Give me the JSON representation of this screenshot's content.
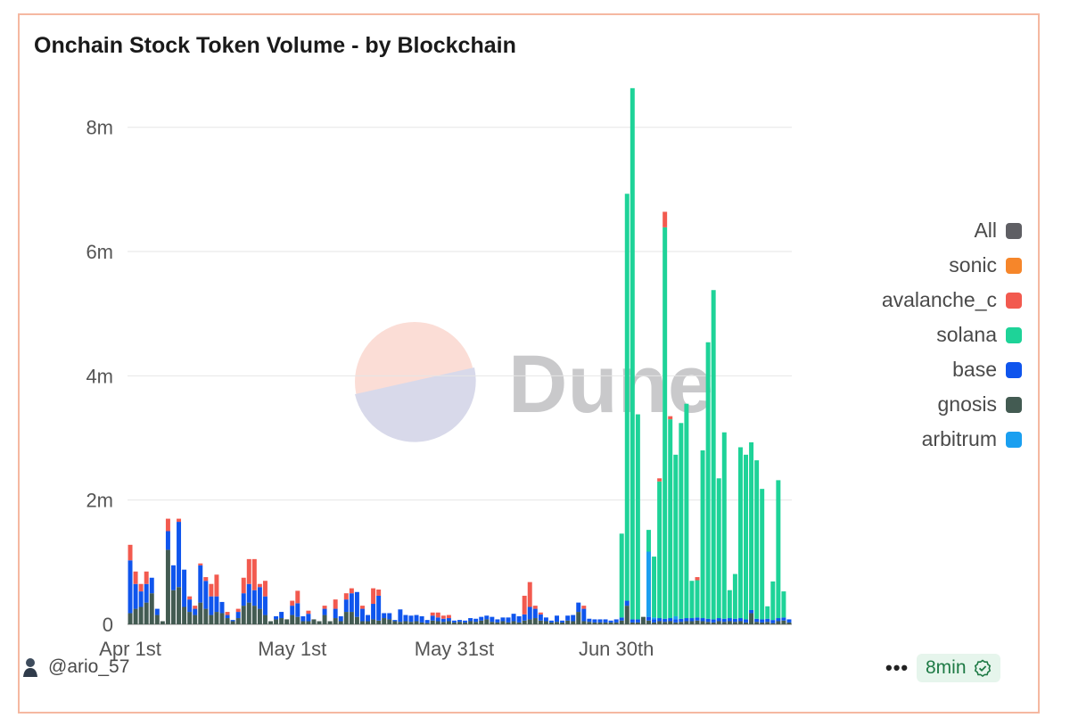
{
  "title": "Onchain Stock Token Volume - by Blockchain",
  "watermark": "Dune",
  "footer": {
    "user": "@ario_57",
    "menu": "•••",
    "freshness": "8min"
  },
  "legend": [
    {
      "name": "All",
      "color": "#5f5f64"
    },
    {
      "name": "sonic",
      "color": "#f6862a"
    },
    {
      "name": "avalanche_c",
      "color": "#f25a4f"
    },
    {
      "name": "solana",
      "color": "#1ed398"
    },
    {
      "name": "base",
      "color": "#0f55ed"
    },
    {
      "name": "gnosis",
      "color": "#435b52"
    },
    {
      "name": "arbitrum",
      "color": "#1a9ff0"
    }
  ],
  "chart_data": {
    "type": "bar",
    "stacked": true,
    "title": "Onchain Stock Token Volume - by Blockchain",
    "xlabel": "",
    "ylabel": "",
    "ylim": [
      0,
      8800000
    ],
    "yticks": [
      0,
      2000000,
      4000000,
      6000000,
      8000000
    ],
    "ytick_labels": [
      "0",
      "2m",
      "4m",
      "6m",
      "8m"
    ],
    "xtick_labels": [
      {
        "label": "Apr 1st",
        "day": 0
      },
      {
        "label": "May 1st",
        "day": 30
      },
      {
        "label": "May 31st",
        "day": 60
      },
      {
        "label": "Jun 30th",
        "day": 90
      }
    ],
    "x_start": "Apr 1st",
    "grid": true,
    "legend_position": "right",
    "series": [
      {
        "name": "gnosis",
        "color": "#435b52",
        "values": [
          0.18,
          0.25,
          0.28,
          0.35,
          0.5,
          0.15,
          0.05,
          1.2,
          0.55,
          0.6,
          0.28,
          0.2,
          0.15,
          0.35,
          0.25,
          0.15,
          0.2,
          0.18,
          0.1,
          0.05,
          0.1,
          0.3,
          0.35,
          0.3,
          0.25,
          0.15,
          0.05,
          0.08,
          0.1,
          0.08,
          0.15,
          0.12,
          0.05,
          0.05,
          0.08,
          0.05,
          0.15,
          0.05,
          0.1,
          0.05,
          0.2,
          0.2,
          0.12,
          0.05,
          0.05,
          0.08,
          0.06,
          0.1,
          0.08,
          0.05,
          0.04,
          0.05,
          0.04,
          0.05,
          0.03,
          0.02,
          0.06,
          0.05,
          0.04,
          0.05,
          0.03,
          0.04,
          0.03,
          0.05,
          0.04,
          0.06,
          0.08,
          0.04,
          0.03,
          0.05,
          0.03,
          0.05,
          0.03,
          0.06,
          0.08,
          0.1,
          0.06,
          0.05,
          0.03,
          0.04,
          0.03,
          0.06,
          0.05,
          0.2,
          0.05,
          0.04,
          0.03,
          0.03,
          0.03,
          0.03,
          0.03,
          0.06,
          0.3,
          0.03,
          0.03,
          0.12,
          0.06,
          0.03,
          0.05,
          0.04,
          0.05,
          0.03,
          0.04,
          0.05,
          0.05,
          0.06,
          0.05,
          0.04,
          0.03,
          0.05,
          0.04,
          0.05,
          0.04,
          0.05,
          0.03,
          0.18,
          0.04,
          0.03,
          0.04,
          0.02,
          0.05,
          0.06,
          0.03
        ]
      },
      {
        "name": "base",
        "color": "#0f55ed",
        "values": [
          0.85,
          0.4,
          0.25,
          0.3,
          0.25,
          0.1,
          0.0,
          0.3,
          0.4,
          1.05,
          0.6,
          0.2,
          0.1,
          0.6,
          0.45,
          0.3,
          0.25,
          0.18,
          0.05,
          0.02,
          0.1,
          0.2,
          0.3,
          0.25,
          0.35,
          0.3,
          0.0,
          0.05,
          0.1,
          0.0,
          0.15,
          0.22,
          0.08,
          0.12,
          0.0,
          0.0,
          0.1,
          0.0,
          0.15,
          0.08,
          0.2,
          0.3,
          0.4,
          0.2,
          0.1,
          0.25,
          0.4,
          0.08,
          0.1,
          0.02,
          0.2,
          0.1,
          0.1,
          0.1,
          0.1,
          0.05,
          0.08,
          0.06,
          0.05,
          0.05,
          0.03,
          0.03,
          0.03,
          0.05,
          0.05,
          0.06,
          0.06,
          0.08,
          0.05,
          0.06,
          0.08,
          0.12,
          0.1,
          0.1,
          0.2,
          0.15,
          0.1,
          0.06,
          0.03,
          0.1,
          0.03,
          0.08,
          0.1,
          0.15,
          0.2,
          0.05,
          0.05,
          0.05,
          0.05,
          0.03,
          0.05,
          0.05,
          0.08,
          0.05,
          0.05,
          0.0,
          0.06,
          0.05,
          0.05,
          0.05,
          0.05,
          0.05,
          0.05,
          0.05,
          0.05,
          0.05,
          0.05,
          0.05,
          0.05,
          0.05,
          0.05,
          0.05,
          0.05,
          0.05,
          0.05,
          0.05,
          0.05,
          0.05,
          0.05,
          0.05,
          0.05,
          0.05,
          0.05
        ]
      },
      {
        "name": "arbitrum",
        "color": "#1a9ff0",
        "values": [
          0,
          0,
          0,
          0,
          0,
          0,
          0,
          0,
          0,
          0,
          0,
          0,
          0,
          0,
          0,
          0,
          0,
          0,
          0,
          0,
          0,
          0,
          0,
          0,
          0,
          0,
          0,
          0,
          0,
          0,
          0,
          0,
          0,
          0,
          0,
          0,
          0,
          0,
          0,
          0,
          0,
          0,
          0,
          0,
          0,
          0,
          0,
          0,
          0,
          0,
          0,
          0,
          0,
          0,
          0,
          0,
          0,
          0,
          0,
          0,
          0,
          0,
          0,
          0,
          0,
          0,
          0,
          0,
          0,
          0,
          0,
          0,
          0,
          0,
          0,
          0,
          0,
          0,
          0,
          0,
          0,
          0,
          0,
          0,
          0,
          0,
          0,
          0,
          0,
          0,
          0,
          0,
          0,
          0,
          0,
          0,
          1.05,
          0.03,
          0,
          0,
          0,
          0.05,
          0,
          0,
          0,
          0,
          0,
          0,
          0,
          0,
          0,
          0,
          0,
          0,
          0,
          0,
          0,
          0,
          0,
          0,
          0,
          0,
          0
        ]
      },
      {
        "name": "solana",
        "color": "#1ed398",
        "values": [
          0,
          0,
          0,
          0,
          0,
          0,
          0,
          0,
          0,
          0,
          0,
          0,
          0,
          0,
          0,
          0,
          0,
          0,
          0,
          0,
          0,
          0,
          0,
          0,
          0,
          0,
          0,
          0,
          0,
          0,
          0,
          0,
          0,
          0,
          0,
          0,
          0,
          0,
          0,
          0,
          0,
          0,
          0,
          0,
          0,
          0,
          0,
          0,
          0,
          0,
          0,
          0,
          0,
          0,
          0,
          0,
          0,
          0,
          0,
          0,
          0,
          0,
          0,
          0,
          0,
          0,
          0,
          0,
          0,
          0,
          0,
          0,
          0,
          0,
          0,
          0,
          0,
          0,
          0,
          0,
          0,
          0,
          0,
          0,
          0,
          0,
          0,
          0,
          0,
          0,
          0,
          1.35,
          6.55,
          8.55,
          3.3,
          0.0,
          0.35,
          0.98,
          2.2,
          6.3,
          3.2,
          2.6,
          3.15,
          3.45,
          0.6,
          0.6,
          2.7,
          4.45,
          5.3,
          2.25,
          3.0,
          0.45,
          0.72,
          2.75,
          2.65,
          2.7,
          2.55,
          2.1,
          0.2,
          0.62,
          2.22,
          0.42,
          0
        ]
      },
      {
        "name": "avalanche_c",
        "color": "#f25a4f",
        "values": [
          0.25,
          0.2,
          0.12,
          0.2,
          0.0,
          0.0,
          0.0,
          0.2,
          0.0,
          0.05,
          0.0,
          0.05,
          0.05,
          0.03,
          0.06,
          0.2,
          0.35,
          0.0,
          0.05,
          0.0,
          0.05,
          0.25,
          0.4,
          0.5,
          0.05,
          0.25,
          0.0,
          0.0,
          0.0,
          0.0,
          0.08,
          0.2,
          0.0,
          0.05,
          0.0,
          0.0,
          0.05,
          0.0,
          0.15,
          0.0,
          0.1,
          0.08,
          0.0,
          0.05,
          0.0,
          0.25,
          0.1,
          0.0,
          0.0,
          0.0,
          0.0,
          0.0,
          0.0,
          0.0,
          0.0,
          0.0,
          0.05,
          0.08,
          0.05,
          0.05,
          0.0,
          0.0,
          0.0,
          0.0,
          0.0,
          0.0,
          0.0,
          0.0,
          0.0,
          0.0,
          0.0,
          0.0,
          0.0,
          0.3,
          0.4,
          0.05,
          0.03,
          0.0,
          0.0,
          0.0,
          0.0,
          0.0,
          0.0,
          0.0,
          0.05,
          0.0,
          0.0,
          0.0,
          0.0,
          0.0,
          0.0,
          0.0,
          0.0,
          0.0,
          0.0,
          0.0,
          0.0,
          0.0,
          0.05,
          0.25,
          0.05,
          0.0,
          0.0,
          0.0,
          0.0,
          0.05,
          0.0,
          0.0,
          0.0,
          0.0,
          0.0,
          0.0,
          0.0,
          0.0,
          0.0,
          0.0,
          0.0,
          0.0,
          0.0,
          0.0,
          0.0,
          0.0
        ]
      },
      {
        "name": "sonic",
        "color": "#f6862a",
        "values": [
          0,
          0,
          0,
          0,
          0,
          0,
          0,
          0,
          0,
          0,
          0,
          0,
          0,
          0,
          0,
          0,
          0,
          0,
          0,
          0,
          0,
          0,
          0,
          0,
          0,
          0,
          0,
          0,
          0,
          0,
          0,
          0,
          0,
          0,
          0,
          0,
          0,
          0,
          0,
          0,
          0,
          0,
          0,
          0,
          0,
          0,
          0,
          0,
          0,
          0,
          0,
          0,
          0,
          0,
          0,
          0,
          0,
          0,
          0,
          0,
          0,
          0,
          0,
          0,
          0,
          0,
          0,
          0,
          0,
          0,
          0,
          0,
          0,
          0,
          0,
          0,
          0,
          0,
          0,
          0,
          0,
          0,
          0,
          0,
          0,
          0,
          0,
          0,
          0,
          0,
          0,
          0,
          0,
          0,
          0,
          0,
          0,
          0,
          0,
          0,
          0,
          0,
          0,
          0,
          0,
          0,
          0,
          0,
          0,
          0,
          0,
          0,
          0,
          0,
          0,
          0,
          0,
          0,
          0,
          0,
          0,
          0,
          0
        ]
      }
    ],
    "unit_multiplier": 1000000
  }
}
